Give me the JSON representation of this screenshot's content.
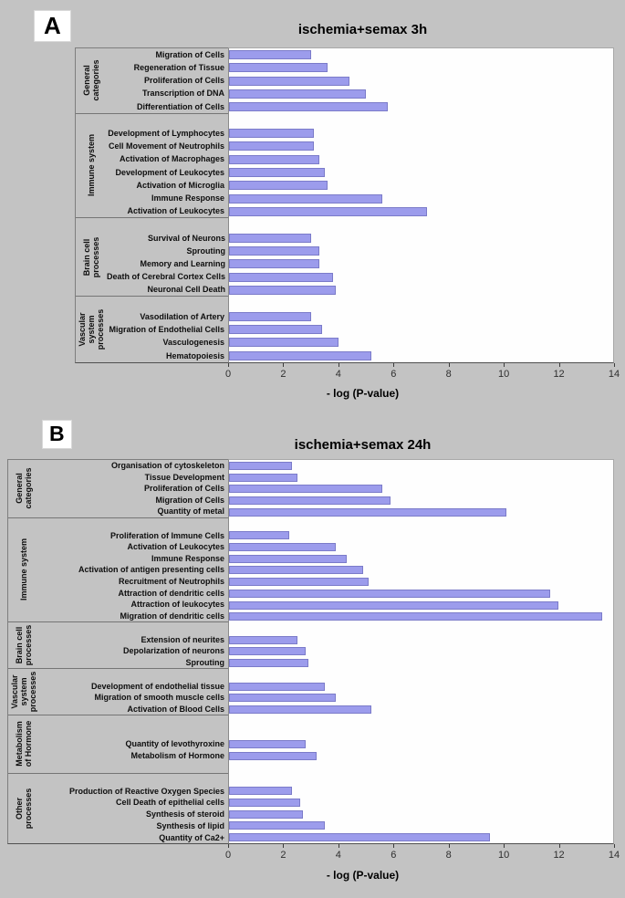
{
  "page": {
    "background_color": "#c3c3c3",
    "plot_background_color": "#fefefe"
  },
  "chart_data": [
    {
      "type": "bar",
      "orientation": "horizontal",
      "panel_label": "A",
      "title": "ischemia+semax 3h",
      "xlabel": "- log (P-value)",
      "xlim": [
        0,
        14
      ],
      "xticks": [
        0,
        2,
        4,
        6,
        8,
        10,
        12,
        14
      ],
      "grid": false,
      "legend": null,
      "bar_color": "#9c9cec",
      "bar_border_color": "#7b7bc9",
      "groups": [
        {
          "name": "General categories",
          "gap_rows_before": 0,
          "gap_rows_after": 0,
          "categories": [
            "Migration of Cells",
            "Regeneration of Tissue",
            "Proliferation of Cells",
            "Transcription of DNA",
            "Differentiation of Cells"
          ],
          "values": [
            3.0,
            3.6,
            4.4,
            5.0,
            5.8
          ]
        },
        {
          "name": "Immune system",
          "gap_rows_before": 1,
          "gap_rows_after": 0,
          "categories": [
            "Development of Lymphocytes",
            "Cell Movement of Neutrophils",
            "Activation of Macrophages",
            "Development of Leukocytes",
            "Activation of Microglia",
            "Immune Response",
            "Activation of Leukocytes"
          ],
          "values": [
            3.1,
            3.1,
            3.3,
            3.5,
            3.6,
            5.6,
            7.2
          ]
        },
        {
          "name": "Brain cell processes",
          "gap_rows_before": 1,
          "gap_rows_after": 0,
          "categories": [
            "Survival of Neurons",
            "Sprouting",
            "Memory and Learning",
            "Death of Cerebral Cortex Cells",
            "Neuronal Cell Death"
          ],
          "values": [
            3.0,
            3.3,
            3.3,
            3.8,
            3.9
          ]
        },
        {
          "name": "Vascular system processes",
          "gap_rows_before": 1,
          "gap_rows_after": 0,
          "categories": [
            "Vasodilation of Artery",
            "Migration of Endothelial Cells",
            "Vasculogenesis",
            "Hematopoiesis"
          ],
          "values": [
            3.0,
            3.4,
            4.0,
            5.2
          ]
        }
      ]
    },
    {
      "type": "bar",
      "orientation": "horizontal",
      "panel_label": "B",
      "title": "ischemia+semax 24h",
      "xlabel": "- log (P-value)",
      "xlim": [
        0,
        14
      ],
      "xticks": [
        0,
        2,
        4,
        6,
        8,
        10,
        12,
        14
      ],
      "grid": false,
      "legend": null,
      "bar_color": "#9c9cec",
      "bar_border_color": "#7b7bc9",
      "groups": [
        {
          "name": "General categories",
          "gap_rows_before": 0,
          "gap_rows_after": 0,
          "categories": [
            "Organisation of cytoskeleton",
            "Tissue Development",
            "Proliferation of Cells",
            "Migration of Cells",
            "Quantity of metal"
          ],
          "values": [
            2.3,
            2.5,
            5.6,
            5.9,
            10.1
          ]
        },
        {
          "name": "Immune system",
          "gap_rows_before": 1,
          "gap_rows_after": 0,
          "categories": [
            "Proliferation of Immune Cells",
            "Activation of Leukocytes",
            "Immune Response",
            "Activation of antigen presenting cells",
            "Recruitment of Neutrophils",
            "Attraction of dendritic cells",
            "Attraction of leukocytes",
            "Migration of dendritic cells"
          ],
          "values": [
            2.2,
            3.9,
            4.3,
            4.9,
            5.1,
            11.7,
            12.0,
            13.6
          ]
        },
        {
          "name": "Brain cell processes",
          "gap_rows_before": 1,
          "gap_rows_after": 0,
          "categories": [
            "Extension of neurites",
            "Depolarization of neurons",
            "Sprouting"
          ],
          "values": [
            2.5,
            2.8,
            2.9
          ]
        },
        {
          "name": "Vascular system processes",
          "gap_rows_before": 1,
          "gap_rows_after": 0,
          "categories": [
            "Development of endothelial tissue",
            "Migration of smooth muscle cells",
            "Activation of Blood Cells"
          ],
          "values": [
            3.5,
            3.9,
            5.2
          ]
        },
        {
          "name": "Metabolism of Hormone",
          "gap_rows_before": 2,
          "gap_rows_after": 1,
          "categories": [
            "Quantity of levothyroxine",
            "Metabolism of Hormone"
          ],
          "values": [
            2.8,
            3.2
          ]
        },
        {
          "name": "Other processes",
          "gap_rows_before": 1,
          "gap_rows_after": 0,
          "categories": [
            "Production of Reactive Oxygen Species",
            "Cell Death of epithelial cells",
            "Synthesis of steroid",
            "Synthesis of lipid",
            "Quantity of Ca2+"
          ],
          "values": [
            2.3,
            2.6,
            2.7,
            3.5,
            9.5
          ]
        }
      ]
    }
  ]
}
